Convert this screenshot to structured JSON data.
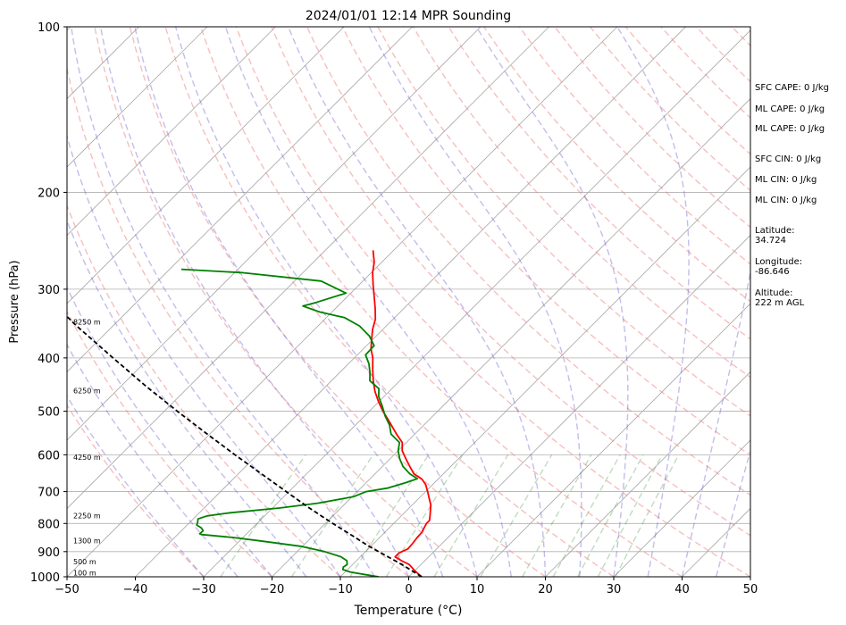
{
  "chart_data": {
    "type": "line",
    "title": "2024/01/01 12:14 MPR Sounding",
    "xlabel": "Temperature (°C)",
    "ylabel": "Pressure (hPa)",
    "xlim": [
      -50,
      50
    ],
    "ylim": [
      1000,
      100
    ],
    "log_y": true,
    "skew": true,
    "grid": true,
    "x_ticks": [
      "−50",
      "−40",
      "−30",
      "−20",
      "−10",
      "0",
      "10",
      "20",
      "30",
      "40",
      "50"
    ],
    "x_tick_values": [
      -50,
      -40,
      -30,
      -20,
      -10,
      0,
      10,
      20,
      30,
      40,
      50
    ],
    "y_ticks": [
      "100",
      "200",
      "300",
      "400",
      "500",
      "600",
      "700",
      "800",
      "900",
      "1000"
    ],
    "y_tick_values": [
      100,
      200,
      300,
      400,
      500,
      600,
      700,
      800,
      900,
      1000
    ],
    "height_labels": [
      {
        "label": "100 m",
        "p": 987
      },
      {
        "label": "500 m",
        "p": 942
      },
      {
        "label": "1300 m",
        "p": 862
      },
      {
        "label": "2250 m",
        "p": 777
      },
      {
        "label": "4250 m",
        "p": 608
      },
      {
        "label": "6250 m",
        "p": 460
      },
      {
        "label": "8250 m",
        "p": 345
      }
    ],
    "series": [
      {
        "color": "#ff0000",
        "points": [
          [
            1000,
            1.9
          ],
          [
            975,
            0.0
          ],
          [
            950,
            -1.7
          ],
          [
            935,
            -3.4
          ],
          [
            920,
            -4.9
          ],
          [
            905,
            -4.9
          ],
          [
            890,
            -4.2
          ],
          [
            870,
            -4.3
          ],
          [
            850,
            -4.5
          ],
          [
            830,
            -4.6
          ],
          [
            810,
            -5.0
          ],
          [
            800,
            -5.2
          ],
          [
            790,
            -5.2
          ],
          [
            770,
            -6.0
          ],
          [
            740,
            -7.3
          ],
          [
            720,
            -8.5
          ],
          [
            700,
            -9.7
          ],
          [
            680,
            -11.0
          ],
          [
            665,
            -12.3
          ],
          [
            650,
            -14.3
          ],
          [
            630,
            -16.0
          ],
          [
            610,
            -17.7
          ],
          [
            590,
            -19.4
          ],
          [
            570,
            -20.6
          ],
          [
            550,
            -22.7
          ],
          [
            520,
            -25.8
          ],
          [
            500,
            -28.0
          ],
          [
            480,
            -30.1
          ],
          [
            460,
            -32.1
          ],
          [
            440,
            -33.9
          ],
          [
            420,
            -35.6
          ],
          [
            400,
            -37.3
          ],
          [
            385,
            -38.9
          ],
          [
            370,
            -40.2
          ],
          [
            355,
            -41.5
          ],
          [
            340,
            -42.6
          ],
          [
            325,
            -44.2
          ],
          [
            310,
            -46.0
          ],
          [
            295,
            -47.9
          ],
          [
            280,
            -49.8
          ],
          [
            268,
            -51.1
          ],
          [
            255,
            -53.0
          ]
        ]
      },
      {
        "color": "#008000",
        "points": [
          [
            1000,
            -4.4
          ],
          [
            990,
            -6.9
          ],
          [
            980,
            -9.3
          ],
          [
            970,
            -10.7
          ],
          [
            960,
            -11.0
          ],
          [
            950,
            -10.8
          ],
          [
            935,
            -11.4
          ],
          [
            920,
            -12.8
          ],
          [
            900,
            -16.0
          ],
          [
            880,
            -20.3
          ],
          [
            860,
            -27.1
          ],
          [
            848,
            -31.6
          ],
          [
            838,
            -36.5
          ],
          [
            835,
            -36.9
          ],
          [
            825,
            -36.8
          ],
          [
            815,
            -37.5
          ],
          [
            805,
            -38.6
          ],
          [
            795,
            -38.9
          ],
          [
            785,
            -39.3
          ],
          [
            775,
            -38.4
          ],
          [
            765,
            -35.5
          ],
          [
            750,
            -29.0
          ],
          [
            735,
            -24.1
          ],
          [
            715,
            -19.8
          ],
          [
            700,
            -18.7
          ],
          [
            690,
            -16.1
          ],
          [
            675,
            -14.3
          ],
          [
            663,
            -13.1
          ],
          [
            650,
            -14.9
          ],
          [
            630,
            -17.0
          ],
          [
            610,
            -18.6
          ],
          [
            590,
            -20.0
          ],
          [
            570,
            -21.0
          ],
          [
            550,
            -23.5
          ],
          [
            530,
            -25.0
          ],
          [
            510,
            -27.0
          ],
          [
            490,
            -28.8
          ],
          [
            470,
            -30.8
          ],
          [
            455,
            -31.9
          ],
          [
            440,
            -34.4
          ],
          [
            425,
            -35.6
          ],
          [
            410,
            -37.0
          ],
          [
            395,
            -38.8
          ],
          [
            380,
            -38.9
          ],
          [
            365,
            -41.0
          ],
          [
            350,
            -43.9
          ],
          [
            338,
            -47.3
          ],
          [
            330,
            -51.8
          ],
          [
            322,
            -55.1
          ],
          [
            317,
            -53.7
          ],
          [
            305,
            -50.7
          ],
          [
            290,
            -56.1
          ],
          [
            280,
            -68.9
          ],
          [
            276,
            -78.3
          ]
        ]
      },
      {
        "color": "#000000",
        "dashed": true,
        "points": [
          [
            1000,
            1.9
          ],
          [
            975,
            -0.4
          ],
          [
            950,
            -2.8
          ],
          [
            925,
            -5.4
          ],
          [
            900,
            -8.1
          ],
          [
            875,
            -10.8
          ],
          [
            850,
            -13.4
          ],
          [
            800,
            -18.9
          ],
          [
            750,
            -24.6
          ],
          [
            700,
            -30.4
          ],
          [
            650,
            -36.6
          ],
          [
            600,
            -43.3
          ],
          [
            550,
            -50.4
          ],
          [
            500,
            -58.1
          ],
          [
            450,
            -66.4
          ],
          [
            400,
            -75.3
          ],
          [
            350,
            -85.3
          ],
          [
            300,
            -96.2
          ],
          [
            290,
            -98.6
          ]
        ]
      }
    ]
  },
  "indices": {
    "sfc_cape": "SFC CAPE: 0 J/kg",
    "ml_cape_1": "ML CAPE: 0 J/kg",
    "ml_cape_2": "ML CAPE: 0 J/kg",
    "sfc_cin": "SFC CIN: 0 J/kg",
    "ml_cin_1": "ML CIN: 0 J/kg",
    "ml_cin_2": "ML CIN: 0 J/kg",
    "latitude_label": "Latitude:",
    "latitude_value": "34.724",
    "longitude_label": "Longitude:",
    "longitude_value": "-86.646",
    "altitude_label": "Altitude:",
    "altitude_value": "222 m AGL"
  }
}
